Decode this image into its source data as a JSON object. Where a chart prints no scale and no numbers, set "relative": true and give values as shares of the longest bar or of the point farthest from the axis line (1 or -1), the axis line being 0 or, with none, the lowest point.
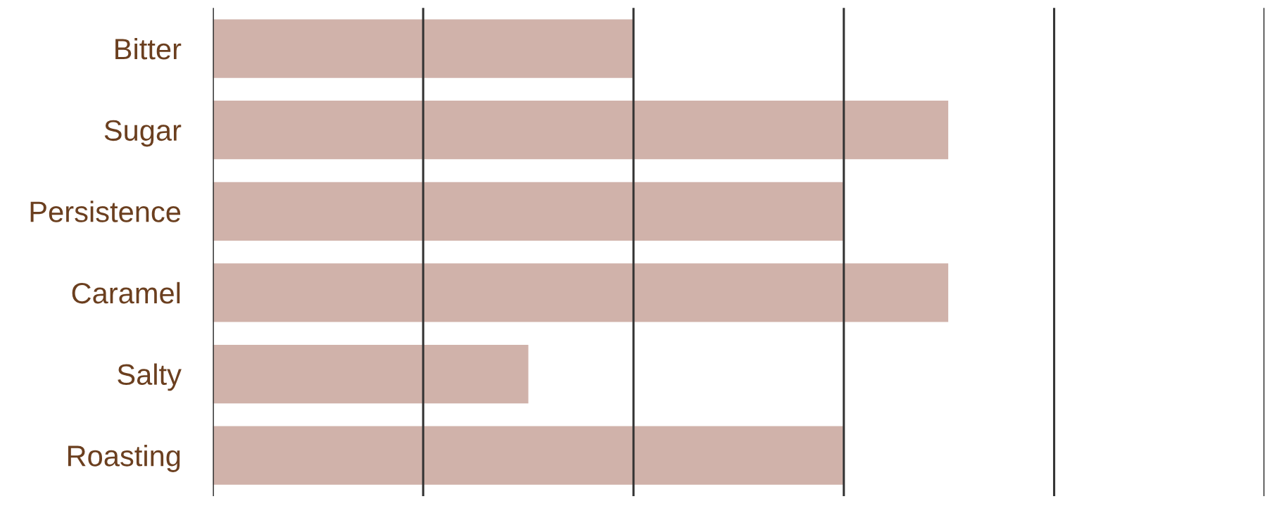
{
  "chart_data": {
    "type": "bar",
    "orientation": "horizontal",
    "relative": true,
    "categories": [
      "Bitter",
      "Sugar",
      "Persistence",
      "Caramel",
      "Salty",
      "Roasting"
    ],
    "values": [
      0.571,
      1,
      0.857,
      1,
      0.429,
      0.857
    ],
    "color": "#d0b2aa",
    "grid": "x",
    "tick_labels": "y"
  }
}
